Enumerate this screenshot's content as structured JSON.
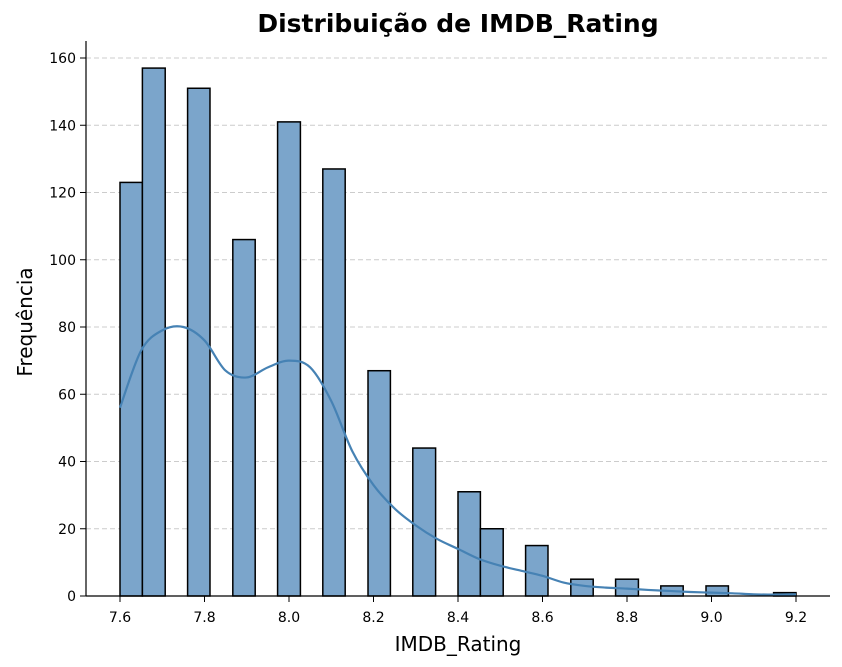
{
  "chart_data": {
    "type": "bar",
    "title": "Distribuição de IMDB_Rating",
    "xlabel": "IMDB_Rating",
    "ylabel": "Frequência",
    "xlim": [
      7.51,
      9.28
    ],
    "ylim": [
      0,
      165
    ],
    "x_ticks": [
      "7.6",
      "7.8",
      "8.0",
      "8.2",
      "8.4",
      "8.6",
      "8.8",
      "9.0",
      "9.2"
    ],
    "y_ticks": [
      "0",
      "20",
      "40",
      "60",
      "80",
      "100",
      "120",
      "140",
      "160"
    ],
    "bins": [
      {
        "start": 7.6,
        "end": 7.653,
        "value": 123
      },
      {
        "start": 7.653,
        "end": 7.707,
        "value": 157
      },
      {
        "start": 7.76,
        "end": 7.813,
        "value": 151
      },
      {
        "start": 7.867,
        "end": 7.92,
        "value": 106
      },
      {
        "start": 7.973,
        "end": 8.027,
        "value": 141
      },
      {
        "start": 8.08,
        "end": 8.133,
        "value": 127
      },
      {
        "start": 8.187,
        "end": 8.24,
        "value": 67
      },
      {
        "start": 8.293,
        "end": 8.347,
        "value": 44
      },
      {
        "start": 8.4,
        "end": 8.453,
        "value": 31
      },
      {
        "start": 8.453,
        "end": 8.507,
        "value": 20
      },
      {
        "start": 8.56,
        "end": 8.613,
        "value": 15
      },
      {
        "start": 8.667,
        "end": 8.72,
        "value": 5
      },
      {
        "start": 8.773,
        "end": 8.827,
        "value": 5
      },
      {
        "start": 8.88,
        "end": 8.933,
        "value": 3
      },
      {
        "start": 8.987,
        "end": 9.04,
        "value": 3
      },
      {
        "start": 9.147,
        "end": 9.2,
        "value": 1
      }
    ],
    "kde": {
      "x": [
        7.6,
        7.65,
        7.7,
        7.75,
        7.8,
        7.85,
        7.9,
        7.95,
        8.0,
        8.05,
        8.1,
        8.15,
        8.2,
        8.25,
        8.3,
        8.35,
        8.4,
        8.45,
        8.5,
        8.55,
        8.6,
        8.65,
        8.7,
        8.75,
        8.8,
        8.85,
        8.9,
        8.95,
        9.0,
        9.05,
        9.1,
        9.15,
        9.2
      ],
      "y": [
        56,
        73,
        79,
        80,
        76,
        67,
        65,
        68,
        70,
        68,
        58,
        43,
        33,
        26,
        21,
        17,
        14,
        11,
        9,
        7.5,
        6,
        4,
        3,
        2.5,
        2.2,
        1.8,
        1.5,
        1.2,
        1,
        0.8,
        0.5,
        0.4,
        0.5
      ]
    },
    "grid": "y-dashed",
    "colors": {
      "bar_fill": "#7ba5cb",
      "bar_edge": "#000000",
      "kde_line": "#4682b4",
      "grid": "#cccccc",
      "axis": "#000000"
    }
  }
}
